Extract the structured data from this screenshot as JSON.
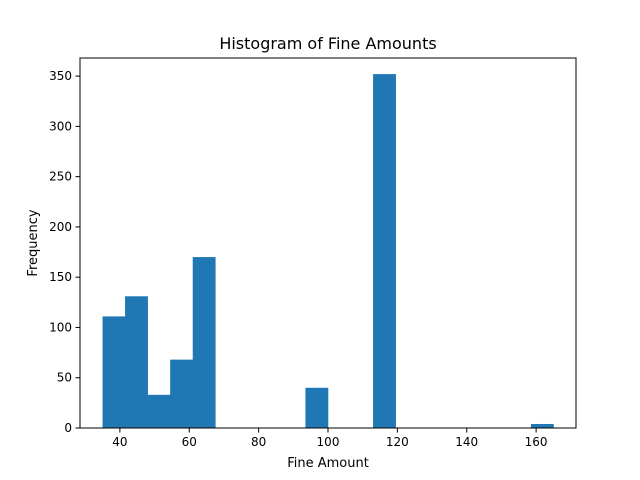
{
  "chart_data": {
    "type": "bar",
    "title": "Histogram of Fine Amounts",
    "xlabel": "Fine Amount",
    "ylabel": "Frequency",
    "bar_color": "#1f77b4",
    "xlim": [
      28.5,
      171.5
    ],
    "ylim": [
      0,
      368
    ],
    "xticks": [
      40,
      60,
      80,
      100,
      120,
      140,
      160
    ],
    "yticks": [
      0,
      50,
      100,
      150,
      200,
      250,
      300,
      350
    ],
    "bin_width": 6.5,
    "bins": [
      {
        "start": 35.0,
        "value": 111
      },
      {
        "start": 41.5,
        "value": 131
      },
      {
        "start": 48.0,
        "value": 33
      },
      {
        "start": 54.5,
        "value": 68
      },
      {
        "start": 61.0,
        "value": 170
      },
      {
        "start": 67.5,
        "value": 0
      },
      {
        "start": 74.0,
        "value": 0
      },
      {
        "start": 80.5,
        "value": 0
      },
      {
        "start": 87.0,
        "value": 0
      },
      {
        "start": 93.5,
        "value": 40
      },
      {
        "start": 100.0,
        "value": 0
      },
      {
        "start": 106.5,
        "value": 0
      },
      {
        "start": 113.0,
        "value": 352
      },
      {
        "start": 119.5,
        "value": 0
      },
      {
        "start": 126.0,
        "value": 0
      },
      {
        "start": 132.5,
        "value": 0
      },
      {
        "start": 139.0,
        "value": 0
      },
      {
        "start": 145.5,
        "value": 0
      },
      {
        "start": 152.0,
        "value": 0
      },
      {
        "start": 158.5,
        "value": 4
      }
    ],
    "grid": false,
    "legend": "none"
  }
}
